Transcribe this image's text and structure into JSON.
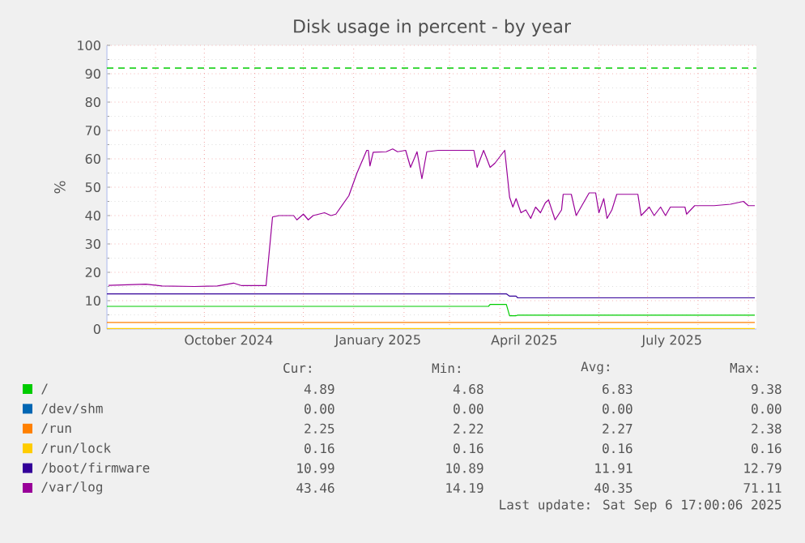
{
  "chart_data": {
    "type": "line",
    "title": "Disk usage in percent - by year",
    "ylabel": "%",
    "xlim": [
      "2024-08-02",
      "2025-09-06"
    ],
    "xticks": [
      {
        "value": "2024-09-01",
        "label": null
      },
      {
        "value": "2024-10-01",
        "label": null
      },
      {
        "value": "2024-10-16",
        "label": "October 2024"
      },
      {
        "value": "2024-11-01",
        "label": null
      },
      {
        "value": "2024-12-01",
        "label": null
      },
      {
        "value": "2025-01-01",
        "label": null
      },
      {
        "value": "2025-01-16",
        "label": "January 2025"
      },
      {
        "value": "2025-02-01",
        "label": null
      },
      {
        "value": "2025-03-01",
        "label": null
      },
      {
        "value": "2025-04-01",
        "label": null
      },
      {
        "value": "2025-04-16",
        "label": "April 2025"
      },
      {
        "value": "2025-05-01",
        "label": null
      },
      {
        "value": "2025-06-01",
        "label": null
      },
      {
        "value": "2025-07-01",
        "label": null
      },
      {
        "value": "2025-07-16",
        "label": "July 2025"
      },
      {
        "value": "2025-08-01",
        "label": null
      },
      {
        "value": "2025-09-01",
        "label": null
      }
    ],
    "ylim": [
      0,
      100
    ],
    "yticks": [
      0,
      10,
      20,
      30,
      40,
      50,
      60,
      70,
      80,
      90,
      100
    ],
    "grid": true,
    "legend": "bottom",
    "line_style": "solid",
    "marker": "none",
    "ref_lines": [
      {
        "axis": "y",
        "value": 92,
        "color": "#00cc00",
        "line_style": "dashed"
      }
    ],
    "series": [
      {
        "name": "/",
        "color": "#00cc00",
        "x": [
          "2024-08-02",
          "2025-03-25",
          "2025-03-26",
          "2025-04-05",
          "2025-04-07",
          "2025-04-11",
          "2025-04-12",
          "2025-09-05"
        ],
        "values": [
          8,
          8,
          8.7,
          8.7,
          4.7,
          4.7,
          4.9,
          4.9
        ]
      },
      {
        "name": "/dev/shm",
        "color": "#0066b3"
      },
      {
        "name": "/run",
        "color": "#ff8000",
        "x": [
          "2024-08-02",
          "2025-09-05"
        ],
        "values": [
          2.3,
          2.3
        ]
      },
      {
        "name": "/run/lock",
        "color": "#ffcc00",
        "x": [
          "2024-08-02",
          "2025-09-05"
        ],
        "values": [
          0.2,
          0.2
        ]
      },
      {
        "name": "/boot/firmware",
        "color": "#330099",
        "x": [
          "2024-08-02",
          "2025-04-05",
          "2025-04-07",
          "2025-04-11",
          "2025-04-12",
          "2025-09-05"
        ],
        "values": [
          12.4,
          12.4,
          11.6,
          11.6,
          11.0,
          11.0
        ]
      },
      {
        "name": "/var/log",
        "color": "#990099",
        "x": [
          "2024-08-03",
          "2024-08-26",
          "2024-09-05",
          "2024-09-25",
          "2024-10-09",
          "2024-10-19",
          "2024-10-24",
          "2024-11-08",
          "2024-11-12",
          "2024-11-16",
          "2024-11-25",
          "2024-11-27",
          "2024-12-01",
          "2024-12-04",
          "2024-12-07",
          "2024-12-14",
          "2024-12-18",
          "2024-12-21",
          "2024-12-29",
          "2025-01-03",
          "2025-01-09",
          "2025-01-10",
          "2025-01-11",
          "2025-01-13",
          "2025-01-21",
          "2025-01-25",
          "2025-01-28",
          "2025-02-02",
          "2025-02-05",
          "2025-02-09",
          "2025-02-12",
          "2025-02-15",
          "2025-02-22",
          "2025-03-04",
          "2025-03-16",
          "2025-03-18",
          "2025-03-22",
          "2025-03-26",
          "2025-03-29",
          "2025-04-04",
          "2025-04-07",
          "2025-04-09",
          "2025-04-11",
          "2025-04-14",
          "2025-04-17",
          "2025-04-20",
          "2025-04-23",
          "2025-04-26",
          "2025-04-29",
          "2025-05-01",
          "2025-05-05",
          "2025-05-09",
          "2025-05-10",
          "2025-05-15",
          "2025-05-18",
          "2025-05-21",
          "2025-05-26",
          "2025-05-30",
          "2025-06-01",
          "2025-06-04",
          "2025-06-06",
          "2025-06-09",
          "2025-06-12",
          "2025-06-25",
          "2025-06-27",
          "2025-07-02",
          "2025-07-05",
          "2025-07-09",
          "2025-07-12",
          "2025-07-15",
          "2025-07-24",
          "2025-07-25",
          "2025-07-30",
          "2025-08-11",
          "2025-08-21",
          "2025-08-29",
          "2025-09-01",
          "2025-09-05"
        ],
        "values": [
          15.4,
          15.8,
          15.2,
          15.0,
          15.2,
          16.2,
          15.3,
          15.3,
          39.5,
          40,
          40,
          38.5,
          40.5,
          38.5,
          40,
          41,
          40,
          40.5,
          47,
          55,
          63,
          63,
          57.5,
          62.3,
          62.5,
          63.5,
          62.5,
          63,
          57,
          62.5,
          53,
          62.5,
          63,
          63,
          63,
          57,
          63,
          57,
          58.5,
          63,
          46.5,
          43,
          46,
          41,
          42,
          39,
          43,
          41,
          44.5,
          45.5,
          38.5,
          42,
          47.5,
          47.5,
          40,
          43,
          48,
          48,
          41,
          46,
          39,
          42,
          47.5,
          47.5,
          40,
          43,
          40,
          43,
          40,
          43,
          43,
          40.5,
          43.5,
          43.5,
          44,
          45,
          43.5,
          43.5
        ]
      }
    ],
    "annotations": [
      "Cur:",
      "Min:",
      "Avg:",
      "Max:",
      "4.89",
      "4.68",
      "6.83",
      "9.38",
      "0.00",
      "0.00",
      "0.00",
      "0.00",
      "2.25",
      "2.22",
      "2.27",
      "2.38",
      "0.16",
      "0.16",
      "0.16",
      "0.16",
      "10.99",
      "10.89",
      "11.91",
      "12.79",
      "43.46",
      "14.19",
      "40.35",
      "71.11",
      "Last update: Sat Sep  6 17:00:06 2025"
    ]
  }
}
